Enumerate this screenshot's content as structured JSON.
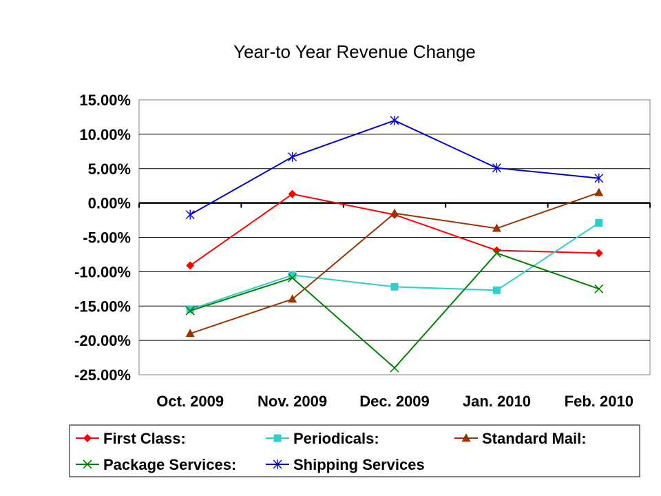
{
  "chart_data": {
    "type": "line",
    "title": "Year-to Year Revenue Change",
    "xlabel": "",
    "ylabel": "",
    "categories": [
      "Oct. 2009",
      "Nov. 2009",
      "Dec. 2009",
      "Jan. 2010",
      "Feb. 2010"
    ],
    "ylim": [
      -25,
      15
    ],
    "yticks": [
      15,
      10,
      5,
      0,
      -5,
      -10,
      -15,
      -20,
      -25
    ],
    "ytick_labels": [
      "15.00%",
      "10.00%",
      "5.00%",
      "0.00%",
      "-5.00%",
      "-10.00%",
      "-15.00%",
      "-20.00%",
      "-25.00%"
    ],
    "grid": true,
    "legend_position": "bottom",
    "series": [
      {
        "name": "First Class:",
        "color": "#ff0000",
        "marker": "diamond",
        "values": [
          -9.1,
          1.3,
          -1.7,
          -6.9,
          -7.3
        ]
      },
      {
        "name": "Periodicals:",
        "color": "#33cccc",
        "marker": "square",
        "values": [
          -15.5,
          -10.5,
          -12.2,
          -12.7,
          -2.9
        ]
      },
      {
        "name": "Standard Mail:",
        "color": "#993300",
        "marker": "triangle",
        "values": [
          -19.0,
          -14.0,
          -1.5,
          -3.7,
          1.5
        ]
      },
      {
        "name": "Package Services:",
        "color": "#008000",
        "marker": "x",
        "values": [
          -15.7,
          -10.9,
          -24.0,
          -7.3,
          -12.5
        ]
      },
      {
        "name": "Shipping Services",
        "color": "#0000cc",
        "marker": "star",
        "values": [
          -1.7,
          6.7,
          12.0,
          5.1,
          3.6
        ]
      }
    ]
  }
}
